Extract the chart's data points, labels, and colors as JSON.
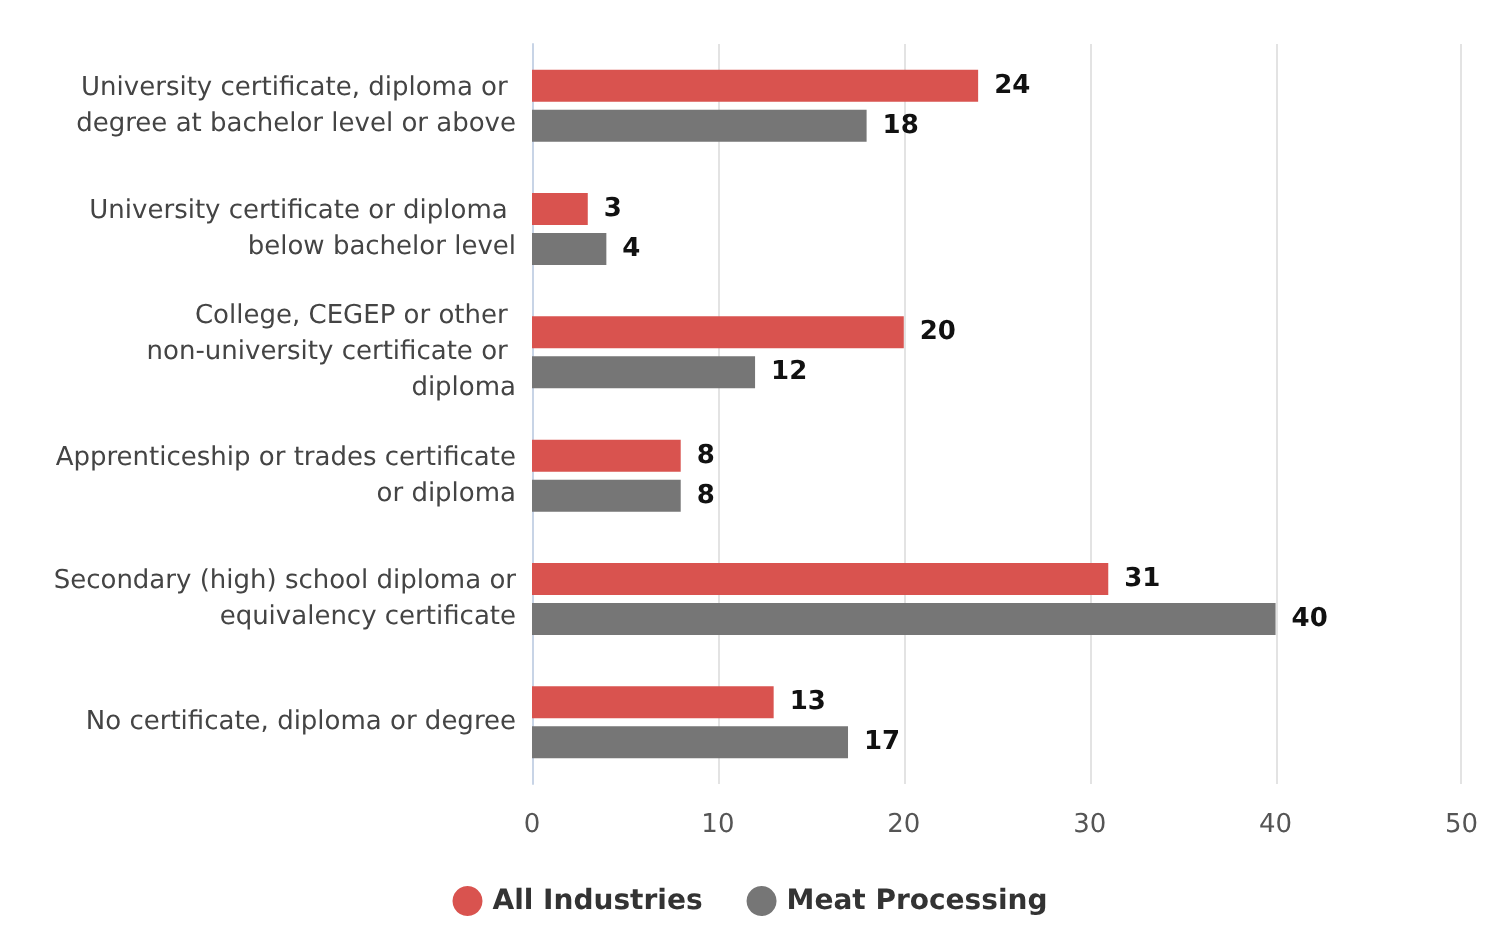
{
  "chart_data": {
    "type": "bar",
    "orientation": "horizontal",
    "categories": [
      "University certificate, diploma or degree at bachelor level or above",
      "University certificate or diploma below bachelor level",
      "College, CEGEP or other non-university certificate or diploma",
      "Apprenticeship or trades certificate or diploma",
      "Secondary (high) school diploma or equivalency certificate",
      "No certificate, diploma or degree"
    ],
    "series": [
      {
        "name": "All Industries",
        "color": "#d9534f",
        "values": [
          24,
          3,
          20,
          8,
          31,
          13
        ]
      },
      {
        "name": "Meat Processing",
        "color": "#767676",
        "values": [
          18,
          4,
          12,
          8,
          40,
          17
        ]
      }
    ],
    "xlim": [
      0,
      50
    ],
    "xticks": [
      0,
      10,
      20,
      30,
      40,
      50
    ],
    "grid": "x",
    "data_labels": true,
    "legend": "bottom"
  }
}
